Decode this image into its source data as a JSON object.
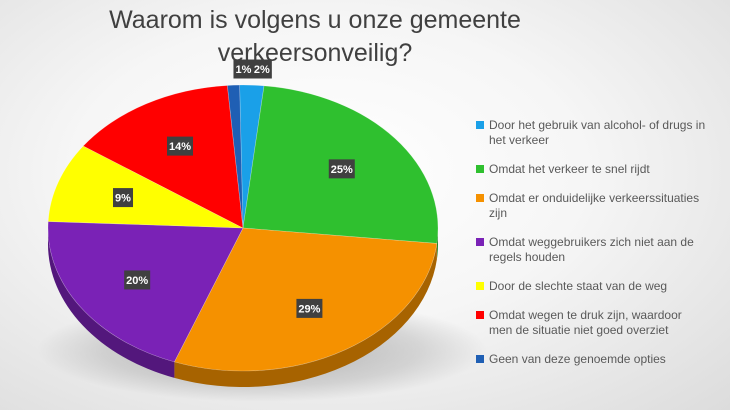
{
  "chart_data": {
    "type": "pie",
    "title_lines": [
      "Waarom is volgens u onze gemeente",
      "verkeersonveilig?"
    ],
    "slices": [
      {
        "label": "Door het gebruik van alcohol- of drugs in het verkeer",
        "value": 2,
        "value_label": "2%",
        "color": "#1aa0e8"
      },
      {
        "label": "Omdat het verkeer te snel rijdt",
        "value": 25,
        "value_label": "25%",
        "color": "#2fc02f"
      },
      {
        "label": "Omdat er onduidelijke verkeerssituaties zijn",
        "value": 29,
        "value_label": "29%",
        "color": "#f59100"
      },
      {
        "label": "Omdat weggebruikers zich niet aan de regels houden",
        "value": 20,
        "value_label": "20%",
        "color": "#7a22b6"
      },
      {
        "label": "Door de slechte staat van de weg",
        "value": 9,
        "value_label": "9%",
        "color": "#ffff00"
      },
      {
        "label": "Omdat wegen te druk zijn, waardoor men de situatie niet goed overziet",
        "value": 14,
        "value_label": "14%",
        "color": "#ff0000"
      },
      {
        "label": "Geen van deze genoemde opties",
        "value": 1,
        "value_label": "1%",
        "color": "#1f5fb4"
      }
    ],
    "legend_position": "right",
    "style": "3d-pie"
  }
}
